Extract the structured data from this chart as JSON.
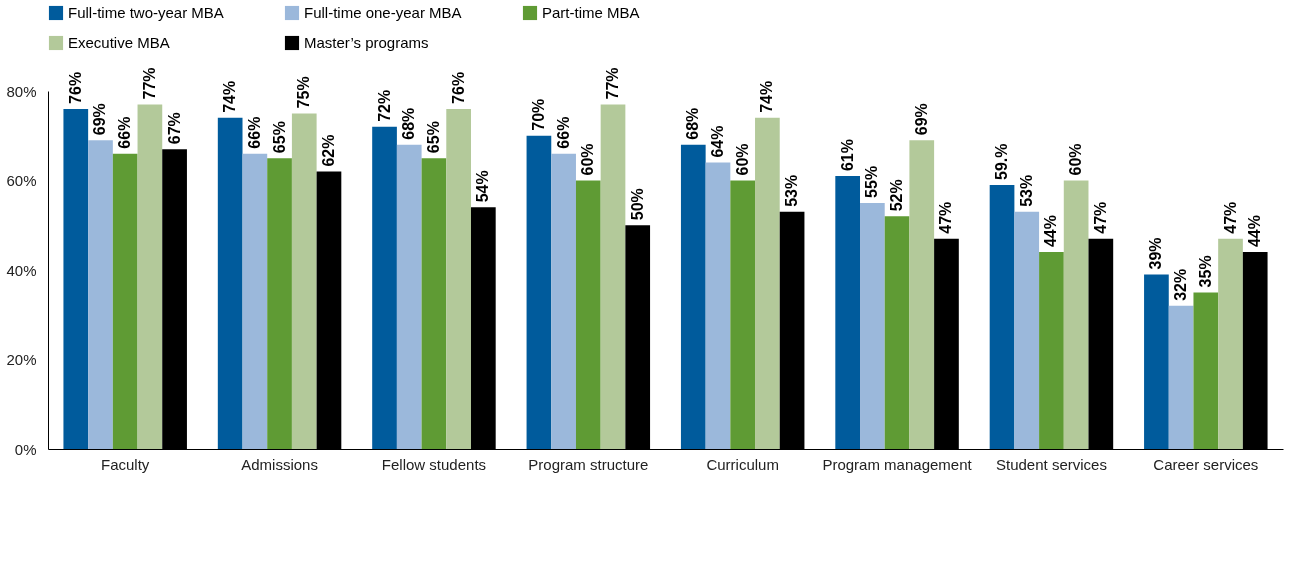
{
  "chart_data": {
    "type": "bar",
    "categories": [
      "Faculty",
      "Admissions",
      "Fellow students",
      "Program structure",
      "Curriculum",
      "Program management",
      "Student services",
      "Career services"
    ],
    "series": [
      {
        "name": "Full-time two-year MBA",
        "color": "#005b9c",
        "values": [
          76,
          74,
          72,
          70,
          68,
          61,
          59,
          39
        ],
        "value_labels": [
          "76%",
          "74%",
          "72%",
          "70%",
          "68%",
          "61%",
          "59.%",
          "39%"
        ]
      },
      {
        "name": "Full-time one-year MBA",
        "color": "#9bb8db",
        "values": [
          69,
          66,
          68,
          66,
          64,
          55,
          53,
          32
        ],
        "value_labels": [
          "69%",
          "66%",
          "68%",
          "66%",
          "64%",
          "55%",
          "53%",
          "32%"
        ]
      },
      {
        "name": "Part-time MBA",
        "color": "#5f9b34",
        "values": [
          66,
          65,
          65,
          60,
          60,
          52,
          44,
          35
        ],
        "value_labels": [
          "66%",
          "65%",
          "65%",
          "60%",
          "60%",
          "52%",
          "44%",
          "35%"
        ]
      },
      {
        "name": "Executive MBA",
        "color": "#b3c99a",
        "values": [
          77,
          75,
          76,
          77,
          74,
          69,
          60,
          47
        ],
        "value_labels": [
          "77%",
          "75%",
          "76%",
          "77%",
          "74%",
          "69%",
          "60%",
          "47%"
        ]
      },
      {
        "name": "Master’s programs",
        "color": "#000000",
        "values": [
          67,
          62,
          54,
          50,
          53,
          47,
          47,
          44
        ],
        "value_labels": [
          "67%",
          "62%",
          "54%",
          "50%",
          "53%",
          "47%",
          "47%",
          "44%"
        ]
      }
    ],
    "ylim": [
      0,
      80
    ],
    "yticks": [
      {
        "value": 0,
        "label": "0%"
      },
      {
        "value": 20,
        "label": "20%"
      },
      {
        "value": 40,
        "label": "40%"
      },
      {
        "value": 60,
        "label": "60%"
      },
      {
        "value": 80,
        "label": "80%"
      }
    ],
    "legend": "top"
  }
}
